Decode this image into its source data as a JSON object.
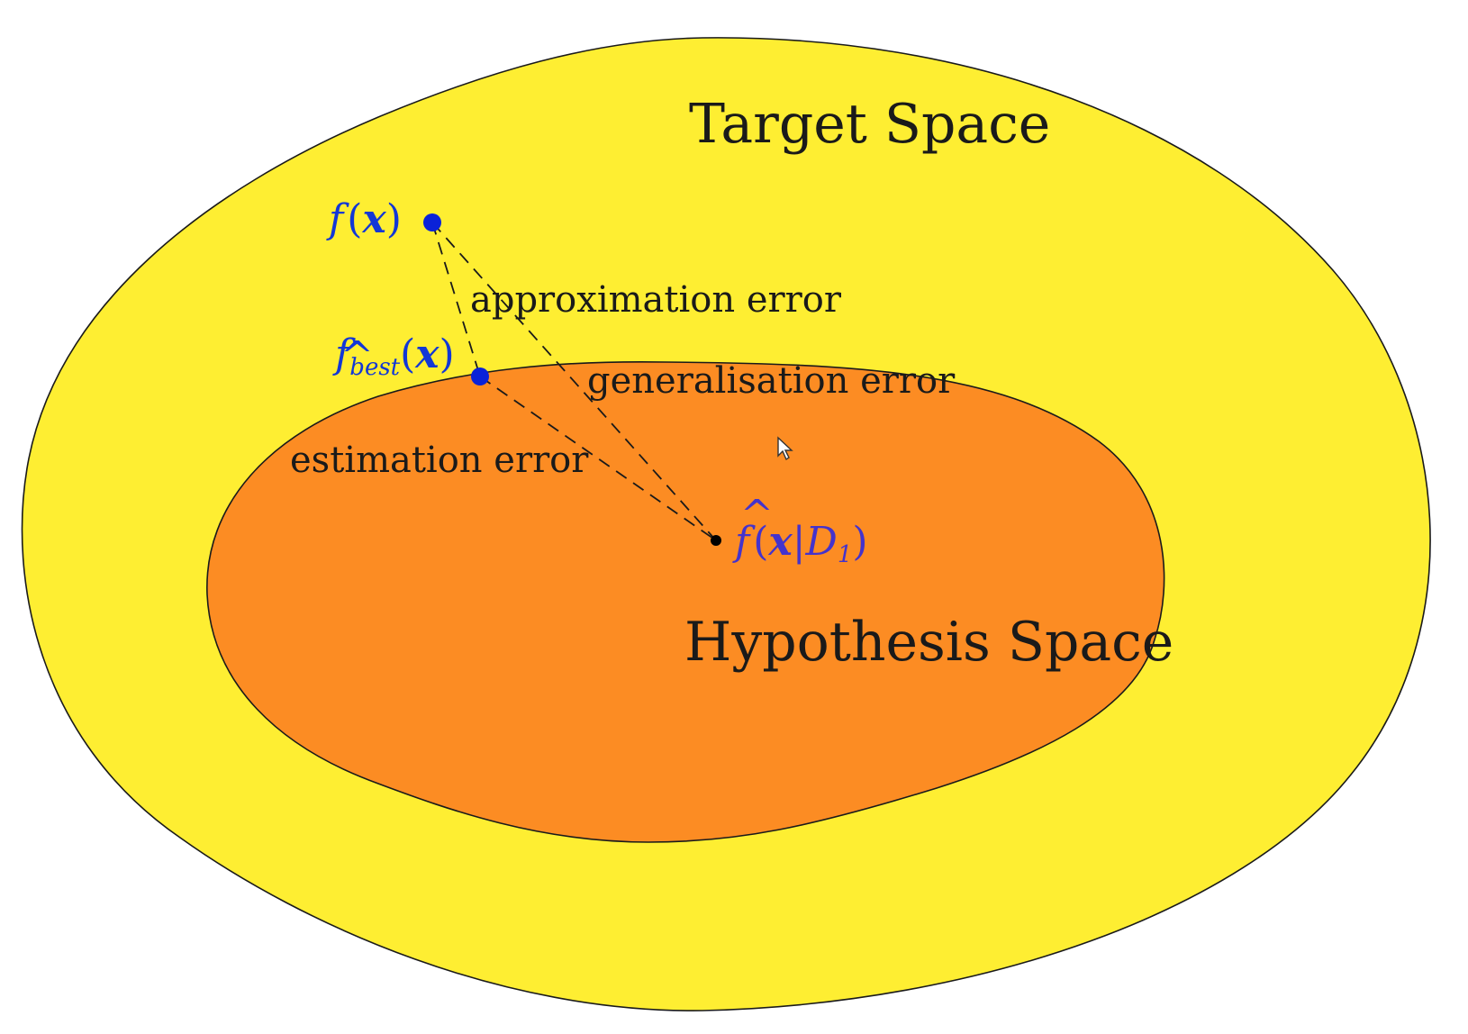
{
  "diagram": {
    "target_space": {
      "label": "Target Space",
      "fill": "#FEEE32"
    },
    "hypothesis_space": {
      "label": "Hypothesis Space",
      "fill": "#FC8C23"
    },
    "edges": {
      "approximation": "approximation error",
      "generalisation": "generalisation error",
      "estimation": "estimation error"
    },
    "points": {
      "f_true": {
        "f": "f",
        "open": "(",
        "x": "x",
        "close": ")",
        "color": "#1237D6"
      },
      "f_best": {
        "f": "f",
        "hat": "^",
        "sub": "best",
        "open": "(",
        "x": "x",
        "close": ")",
        "color": "#1237D6"
      },
      "f_hat": {
        "f": "f",
        "hat": "^",
        "open": "(",
        "x": "x",
        "bar": "|",
        "D": "D",
        "D_sub": "1",
        "close": ")",
        "color": "#4433CC"
      }
    },
    "colors": {
      "outline": "#1a1a1a",
      "dot_blue": "#0A22D8",
      "dot_black": "#000000"
    }
  }
}
